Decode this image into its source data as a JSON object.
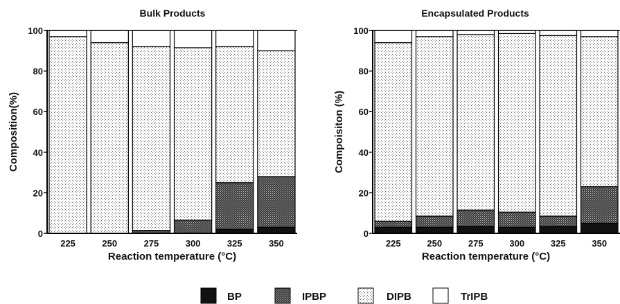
{
  "chart_data": [
    {
      "type": "bar",
      "stacked": true,
      "title": "Bulk Products",
      "xlabel": "Reaction temperature (°C)",
      "ylabel": "Composition(%)",
      "ylim": [
        0,
        100
      ],
      "yticks": [
        0,
        20,
        40,
        60,
        80,
        100
      ],
      "categories": [
        "225",
        "250",
        "275",
        "300",
        "325",
        "350"
      ],
      "series": [
        {
          "name": "BP",
          "values": [
            0,
            0,
            0,
            0,
            2,
            3
          ]
        },
        {
          "name": "IPBP",
          "values": [
            0,
            0,
            1.5,
            6.5,
            23,
            25
          ]
        },
        {
          "name": "DIPB",
          "values": [
            97,
            94,
            90.5,
            85,
            67,
            62
          ]
        },
        {
          "name": "TrIPB",
          "values": [
            3,
            6,
            8,
            8.5,
            8,
            10
          ]
        }
      ]
    },
    {
      "type": "bar",
      "stacked": true,
      "title": "Encapsulated Products",
      "xlabel": "Reaction temperature (°C)",
      "ylabel": "Compoisiton (%)",
      "ylim": [
        0,
        100
      ],
      "yticks": [
        0,
        20,
        40,
        60,
        80,
        100
      ],
      "categories": [
        "225",
        "250",
        "275",
        "300",
        "325",
        "350"
      ],
      "series": [
        {
          "name": "BP",
          "values": [
            3,
            3,
            3.5,
            3,
            3.5,
            5
          ]
        },
        {
          "name": "IPBP",
          "values": [
            3,
            5.5,
            8,
            7.5,
            5,
            18
          ]
        },
        {
          "name": "DIPB",
          "values": [
            88,
            88.5,
            86.5,
            88,
            89,
            74
          ]
        },
        {
          "name": "TrIPB",
          "values": [
            6,
            3,
            2,
            1.5,
            2.5,
            3
          ]
        }
      ]
    }
  ],
  "legend": {
    "position": "bottom",
    "items": [
      {
        "label": "BP",
        "series": "BP"
      },
      {
        "label": "IPBP",
        "series": "IPBP"
      },
      {
        "label": "DIPB",
        "series": "DIPB"
      },
      {
        "label": "TrIPB",
        "series": "TrIPB"
      }
    ]
  }
}
